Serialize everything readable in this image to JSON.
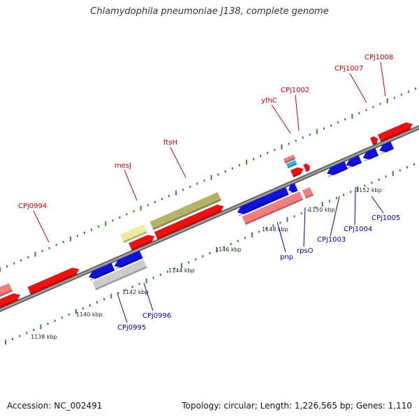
{
  "title": "Chlamydophila pneumoniae J138, complete genome",
  "footer": {
    "accession": "Accession: NC_002491",
    "summary": "Topology: circular; Length: 1,226,565 bp; Genes: 1,110"
  },
  "colors": {
    "forward_label": "#cc0000",
    "reverse_label": "#0000aa",
    "backbone": "#888888",
    "tick": "#228b22"
  },
  "gene_labels_forward": [
    "CPj0994",
    "mesJ",
    "ftsH",
    "yfhC",
    "CPj1002",
    "CPj1007",
    "CPj1008"
  ],
  "gene_labels_reverse": [
    "CPj0995",
    "CPj0996",
    "pnp",
    "rpsO",
    "CPj1003",
    "CPj1004",
    "CPj1005"
  ],
  "scale_ticks": [
    "1138 kbp",
    "1140 kbp",
    "1142 kbp",
    "1144 kbp",
    "1146 kbp",
    "1148 kbp",
    "1150 kbp",
    "1152 kbp"
  ]
}
